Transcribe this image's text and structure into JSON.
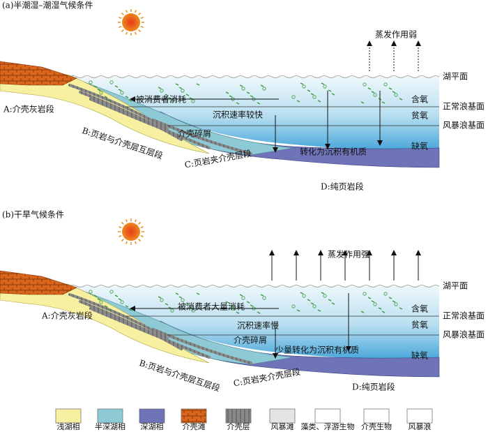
{
  "panels": [
    {
      "title": "(a)半潮湿–潮湿气候条件",
      "evaporation": "蒸发作用弱",
      "lake_level": "湖平面",
      "oxic": "含氧",
      "normal_wave_base": "正常浪基面",
      "dysoxic": "贫氧",
      "storm_wave_base": "风暴浪基面",
      "anoxic": "缺氧",
      "consumed": "被消费者消耗",
      "sedimentation_rate": "沉积速率较快",
      "shell_debris": "介壳碎屑",
      "conversion": "转化为沉积有机质",
      "segment_a": "A:介壳灰岩段",
      "segment_b": "B:页岩与介壳层互层段",
      "segment_c": "C:页岩夹介壳层段",
      "segment_d": "D:纯页岩段"
    },
    {
      "title": "(b)干旱气候条件",
      "evaporation": "蒸发作用强",
      "lake_level": "湖平面",
      "oxic": "含氧",
      "normal_wave_base": "正常浪基面",
      "dysoxic": "贫氧",
      "storm_wave_base": "风暴浪基面",
      "anoxic": "缺氧",
      "consumed": "被消费者大量消耗",
      "sedimentation_rate": "沉积速率慢",
      "shell_debris": "介壳碎屑",
      "conversion": "少量转化为沉积有机质",
      "segment_a": "A:介壳灰岩段",
      "segment_b": "B:页岩与介壳层互层段",
      "segment_c": "C:页岩夹介壳层段",
      "segment_d": "D:纯页岩段"
    }
  ],
  "legend": [
    "浅湖相",
    "半深湖相",
    "深湖相",
    "介壳滩",
    "介壳层",
    "风暴滩",
    "藻类、浮游生物",
    "介壳生物",
    "风暴浪"
  ]
}
